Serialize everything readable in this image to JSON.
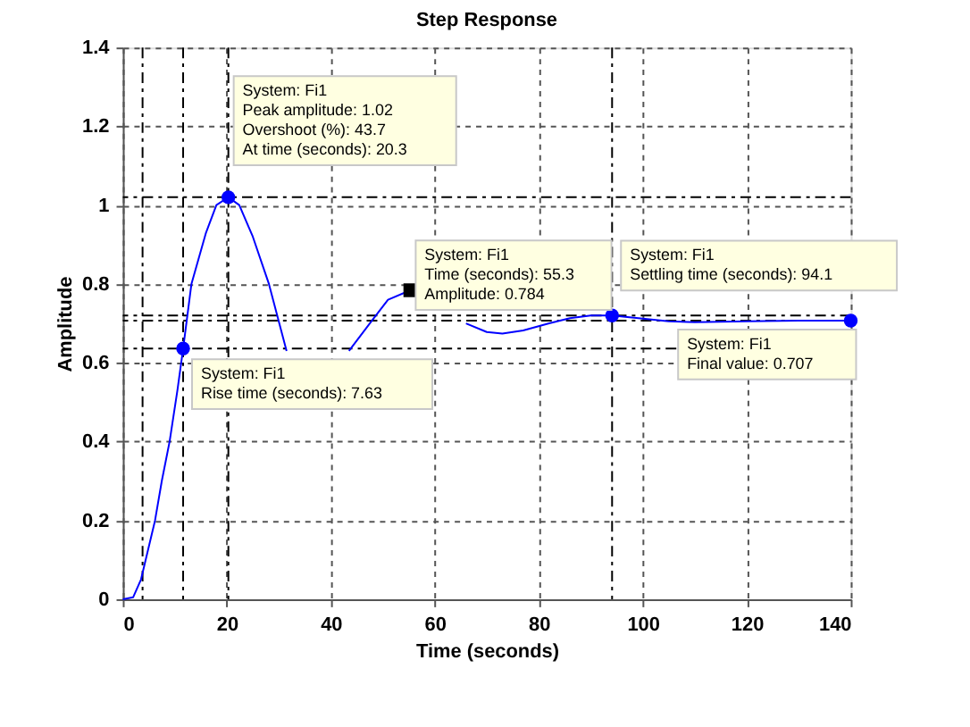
{
  "chart_data": {
    "type": "line",
    "title": "Step Response",
    "xlabel": "Time (seconds)",
    "ylabel": "Amplitude",
    "xlim": [
      0,
      140
    ],
    "xticks": [
      0,
      20,
      40,
      60,
      80,
      100,
      120,
      140
    ],
    "ylim": [
      0,
      1.4
    ],
    "yticks": [
      0,
      0.2,
      0.4,
      0.6,
      0.8,
      1,
      1.2,
      1.4
    ],
    "grid": true,
    "line_style": "solid",
    "series": [
      {
        "color": "#0000ff",
        "marker": "none",
        "x": [
          0,
          2,
          3.5,
          6.2,
          7.5,
          9,
          10.5,
          11.6,
          13.2,
          16,
          18,
          20.3,
          22.4,
          25,
          28.1,
          31.5,
          37,
          43.5,
          47.5,
          51,
          55.3,
          58,
          62,
          66,
          70,
          73,
          77,
          82,
          86,
          90,
          94.1,
          100,
          105,
          110,
          120,
          130,
          140
        ],
        "values": [
          0,
          0.005,
          0.05,
          0.2,
          0.3,
          0.4,
          0.53,
          0.636,
          0.8,
          0.93,
          1.0,
          1.02,
          1.0,
          0.92,
          0.8,
          0.63,
          null,
          0.63,
          0.7,
          0.76,
          0.784,
          null,
          null,
          0.7,
          0.678,
          0.674,
          0.682,
          0.7,
          0.713,
          0.72,
          0.72,
          0.712,
          0.705,
          0.703,
          0.705,
          0.707,
          0.707
        ]
      },
      {
        "type": "scatter",
        "color": "#0000ff",
        "marker": "circle",
        "x": [
          11.6,
          20.3,
          94.1,
          140
        ],
        "values": [
          0.636,
          1.02,
          0.72,
          0.707
        ]
      },
      {
        "type": "scatter",
        "color": "#000000",
        "marker": "square",
        "x": [
          55.3
        ],
        "values": [
          0.784
        ]
      }
    ],
    "ref_lines": [
      {
        "axis": "y",
        "value": 1.02,
        "color": "#000000",
        "line_style": "dashed"
      },
      {
        "axis": "y",
        "value": 0.636,
        "color": "#000000",
        "line_style": "dashed"
      },
      {
        "axis": "y",
        "value": 0.72,
        "color": "#000000",
        "line_style": "dashed"
      },
      {
        "axis": "y",
        "value": 0.707,
        "color": "#000000",
        "line_style": "dashed"
      },
      {
        "axis": "x",
        "value": 3.8,
        "color": "#000000",
        "line_style": "dashed"
      },
      {
        "axis": "x",
        "value": 11.6,
        "color": "#000000",
        "line_style": "dashed"
      },
      {
        "axis": "x",
        "value": 20.3,
        "color": "#000000",
        "line_style": "dashed"
      },
      {
        "axis": "x",
        "value": 94.1,
        "color": "#000000",
        "line_style": "dashed"
      }
    ],
    "annotations": [
      {
        "text": "System: Fi1\nRise time (seconds): 7.63",
        "x": 11.6,
        "y": 0.636
      },
      {
        "text": "System: Fi1\nPeak amplitude: 1.02\nOvershoot (%): 43.7\nAt time (seconds): 20.3",
        "x": 20.3,
        "y": 1.02
      },
      {
        "text": "System: Fi1\nTime (seconds): 55.3\nAmplitude: 0.784",
        "x": 55.3,
        "y": 0.784
      },
      {
        "text": "System: Fi1\nSettling time (seconds): 94.1",
        "x": 94.1,
        "y": 0.72
      },
      {
        "text": "System: Fi1\nFinal value: 0.707",
        "x": 140,
        "y": 0.707
      }
    ]
  }
}
